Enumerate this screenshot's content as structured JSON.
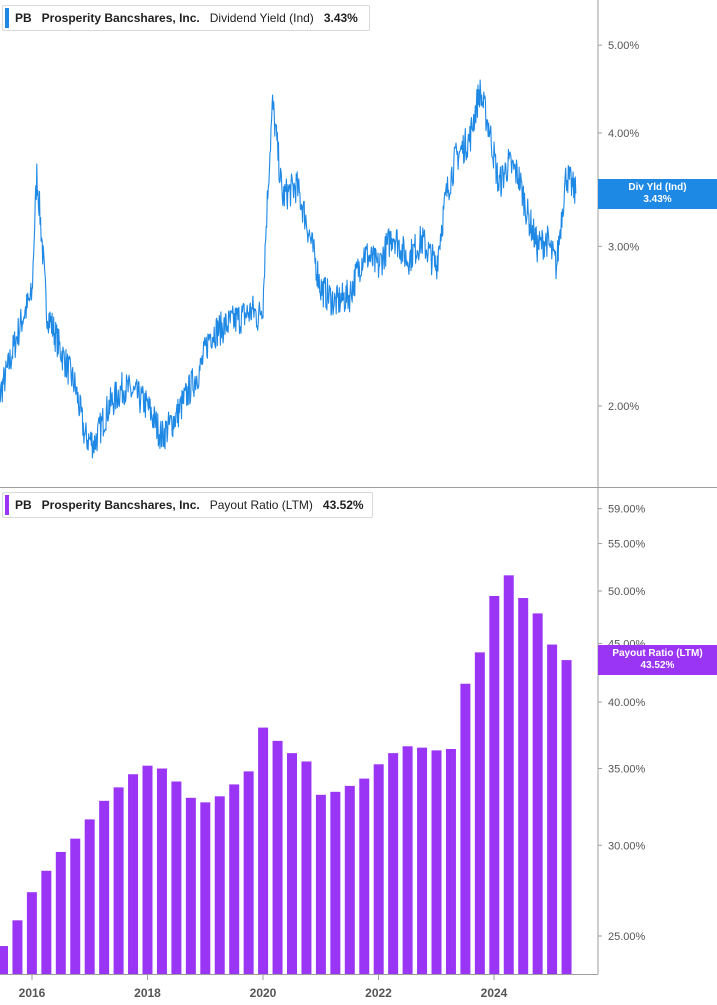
{
  "colors": {
    "yield": "#1e88e5",
    "payout": "#9b35f5",
    "axis": "#9e9e9e",
    "tick_text": "#555555"
  },
  "panel1": {
    "ticker": "PB",
    "company": "Prosperity Bancshares, Inc.",
    "metric": "Dividend Yield (Ind)",
    "value": "3.43%",
    "tag_line1": "Div Yld (Ind)",
    "tag_line2": "3.43%"
  },
  "panel2": {
    "ticker": "PB",
    "company": "Prosperity Bancshares, Inc.",
    "metric": "Payout Ratio (LTM)",
    "value": "43.52%",
    "tag_line1": "Payout Ratio (LTM)",
    "tag_line2": "43.52%"
  },
  "chart_data": [
    {
      "type": "line",
      "title": "PB Prosperity Bancshares, Inc. Dividend Yield (Ind) 3.43%",
      "y_scale": "log",
      "y_ticks": [
        "5.00%",
        "4.00%",
        "3.00%",
        "2.00%"
      ],
      "y_tick_values": [
        5.0,
        4.0,
        3.0,
        2.0
      ],
      "series": [
        {
          "name": "Dividend Yield (Ind)",
          "x": [
            "2015-05",
            "2015-08",
            "2015-11",
            "2016-01",
            "2016-02",
            "2016-04",
            "2016-07",
            "2016-10",
            "2016-12",
            "2017-02",
            "2017-05",
            "2017-08",
            "2017-11",
            "2018-01",
            "2018-04",
            "2018-07",
            "2018-10",
            "2018-12",
            "2019-02",
            "2019-05",
            "2019-08",
            "2019-11",
            "2019-12",
            "2020-01",
            "2020-03",
            "2020-05",
            "2020-08",
            "2020-10",
            "2021-01",
            "2021-04",
            "2021-07",
            "2021-10",
            "2022-01",
            "2022-04",
            "2022-07",
            "2022-10",
            "2023-01",
            "2023-03",
            "2023-05",
            "2023-08",
            "2023-10",
            "2023-12",
            "2024-02",
            "2024-04",
            "2024-06",
            "2024-08",
            "2024-10",
            "2024-12",
            "2025-02",
            "2025-04",
            "2025-06"
          ],
          "values": [
            1.95,
            2.2,
            2.5,
            2.65,
            3.6,
            2.55,
            2.3,
            2.1,
            1.85,
            1.82,
            2.0,
            2.1,
            2.05,
            2.0,
            1.85,
            1.95,
            2.1,
            2.2,
            2.4,
            2.45,
            2.5,
            2.55,
            2.5,
            2.6,
            4.3,
            3.4,
            3.5,
            3.2,
            2.7,
            2.6,
            2.65,
            2.95,
            2.85,
            3.1,
            2.9,
            3.05,
            2.85,
            3.4,
            3.75,
            3.95,
            4.45,
            4.05,
            3.5,
            3.7,
            3.6,
            3.25,
            3.0,
            3.05,
            2.85,
            3.6,
            3.43
          ]
        }
      ]
    },
    {
      "type": "bar",
      "title": "PB Prosperity Bancshares, Inc. Payout Ratio (LTM) 43.52%",
      "y_scale": "log",
      "y_ticks": [
        "59.00%",
        "55.00%",
        "50.00%",
        "45.00%",
        "40.00%",
        "35.00%",
        "30.00%",
        "25.00%"
      ],
      "y_tick_values": [
        59,
        55,
        50,
        45,
        40,
        35,
        30,
        25
      ],
      "x_ticks": [
        "2016",
        "2018",
        "2020",
        "2022",
        "2024"
      ],
      "categories": [
        "2015Q3",
        "2015Q4",
        "2016Q1",
        "2016Q2",
        "2016Q3",
        "2016Q4",
        "2017Q1",
        "2017Q2",
        "2017Q3",
        "2017Q4",
        "2018Q1",
        "2018Q2",
        "2018Q3",
        "2018Q4",
        "2019Q1",
        "2019Q2",
        "2019Q3",
        "2019Q4",
        "2020Q1",
        "2020Q2",
        "2020Q3",
        "2020Q4",
        "2021Q1",
        "2021Q2",
        "2021Q3",
        "2021Q4",
        "2022Q1",
        "2022Q2",
        "2022Q3",
        "2022Q4",
        "2023Q1",
        "2023Q2",
        "2023Q3",
        "2023Q4",
        "2024Q1",
        "2024Q2",
        "2024Q3",
        "2024Q4",
        "2025Q1",
        "2025Q2"
      ],
      "series": [
        {
          "name": "Payout Ratio (LTM)",
          "values": [
            24.5,
            25.8,
            27.3,
            28.5,
            29.6,
            30.4,
            31.6,
            32.8,
            33.7,
            34.6,
            35.2,
            35.0,
            34.1,
            33.0,
            32.7,
            33.1,
            33.9,
            34.8,
            38.0,
            37.0,
            36.1,
            35.5,
            33.2,
            33.4,
            33.8,
            34.3,
            35.3,
            36.1,
            36.6,
            36.5,
            36.3,
            36.4,
            41.5,
            44.2,
            49.5,
            51.6,
            49.3,
            47.8,
            44.9,
            43.52
          ]
        }
      ]
    }
  ]
}
